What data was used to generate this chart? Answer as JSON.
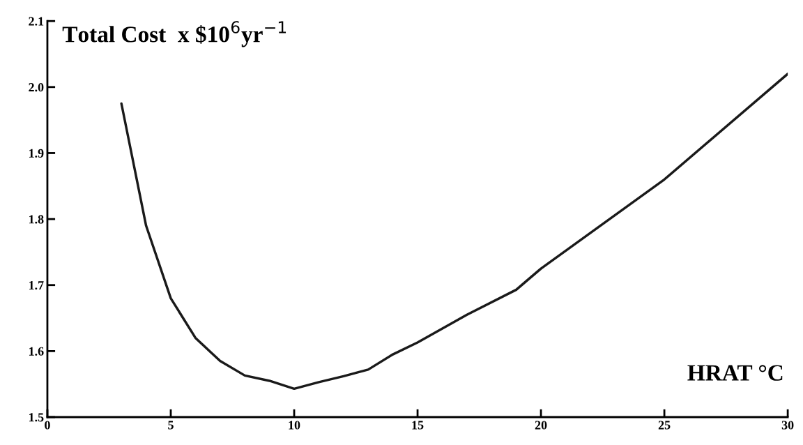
{
  "chart_data": {
    "type": "line",
    "title": "Total Cost  x $10$^{6}$yr$^{−1}$",
    "xlabel": "HRAT °C",
    "x": [
      3,
      4,
      5,
      6,
      7,
      8,
      9,
      10,
      11,
      12,
      13,
      14,
      15,
      17,
      19,
      20,
      25,
      30
    ],
    "series": [
      {
        "color": "#1a1a1a",
        "values": [
          1.975,
          1.79,
          1.68,
          1.62,
          1.585,
          1.563,
          1.555,
          1.543,
          1.553,
          1.562,
          1.572,
          1.595,
          1.613,
          1.655,
          1.693,
          1.725,
          1.86,
          2.02
        ]
      }
    ],
    "xlim": [
      0,
      30
    ],
    "xticks": [
      0,
      5,
      10,
      15,
      20,
      25,
      30
    ],
    "ylim": [
      1.5,
      2.1
    ],
    "yticks": [
      1.5,
      1.6,
      1.7,
      1.8,
      1.9,
      {
        "value": 2,
        "label": "2.0"
      },
      2.1
    ],
    "grid": false,
    "legend": false,
    "marker": "none",
    "line_style": "solid"
  }
}
